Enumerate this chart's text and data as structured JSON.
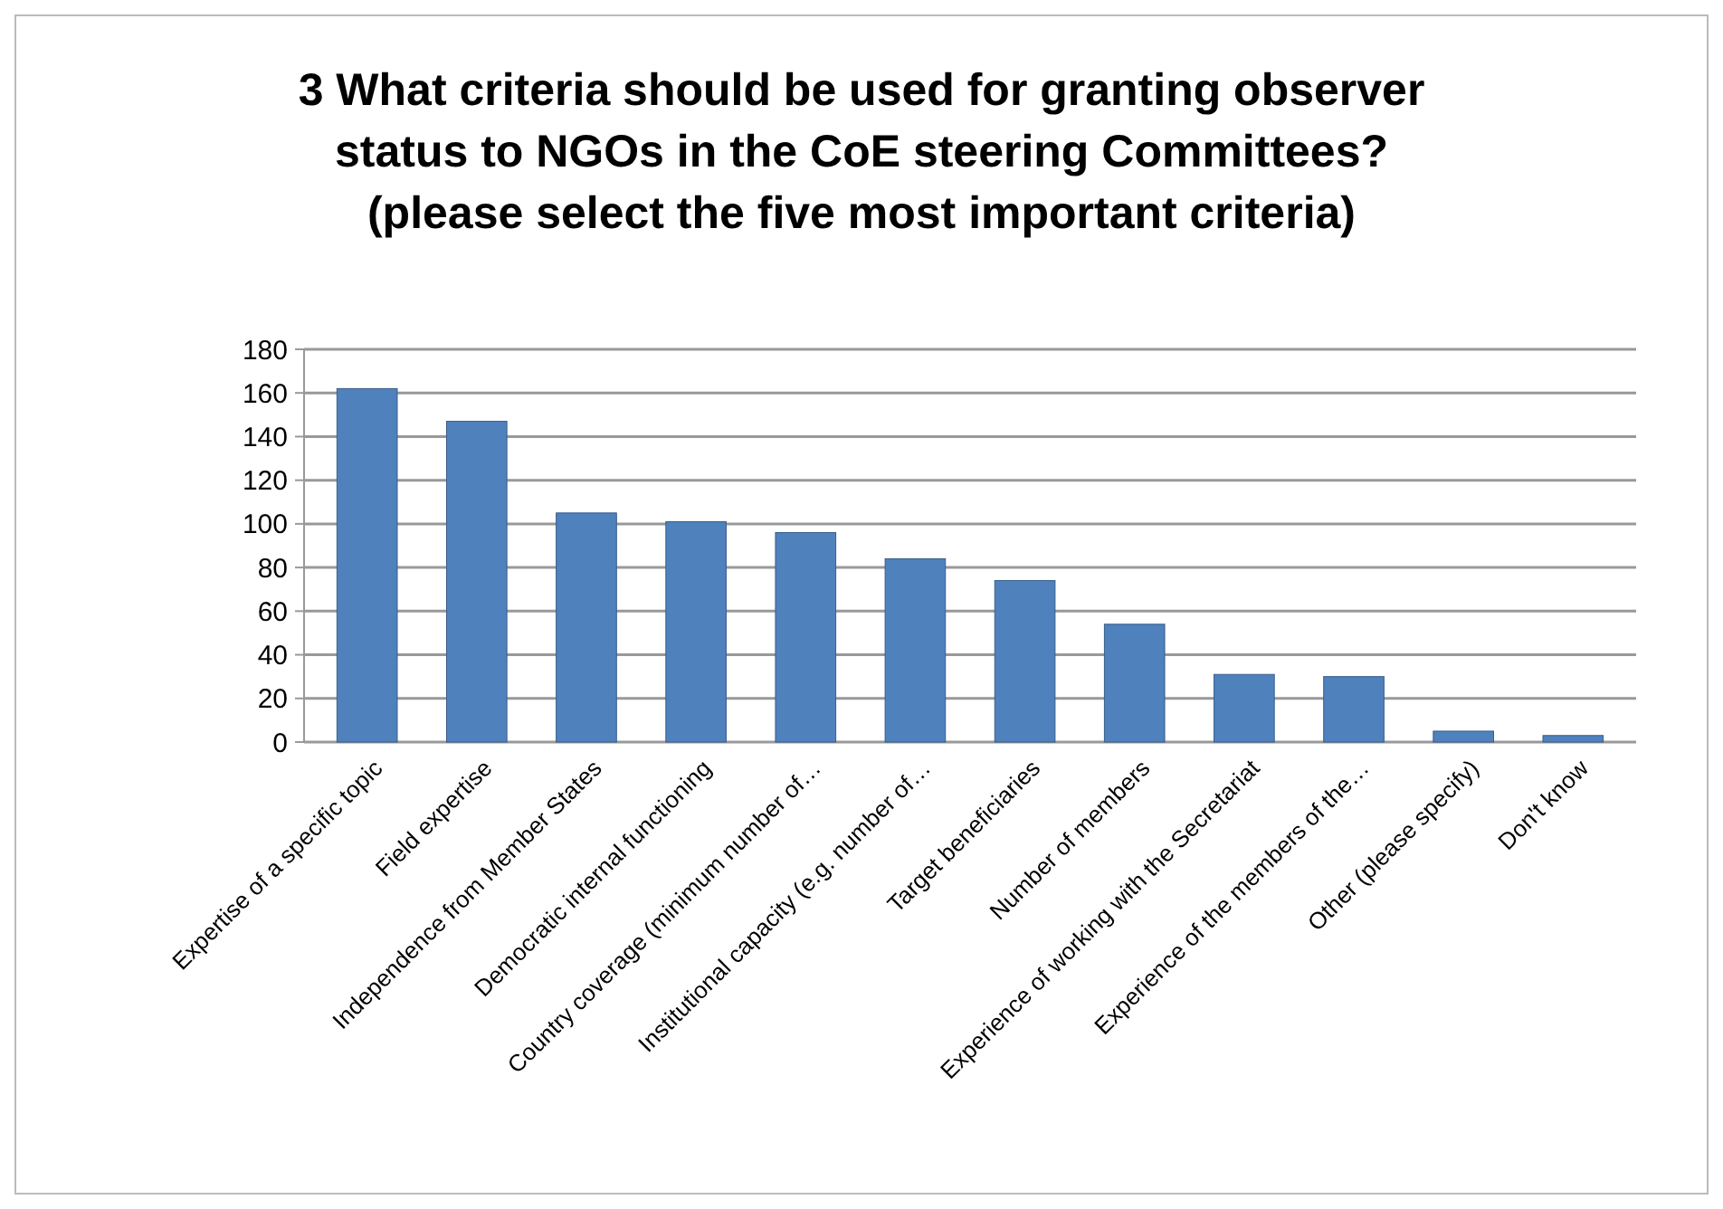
{
  "chart_data": {
    "type": "bar",
    "title": "3 What criteria should be used for granting observer status to NGOs in the CoE steering Committees? (please select the five most important criteria)",
    "categories": [
      "Expertise of a specific topic",
      "Field expertise",
      "Independence from Member States",
      "Democratic internal functioning",
      "Country coverage (minimum number of…",
      "Institutional capacity (e.g. number of…",
      "Target beneficiaries",
      "Number of members",
      "Experience of working with the Secretariat",
      "Experience of the members of the…",
      "Other (please specify)",
      "Don't know"
    ],
    "values": [
      162,
      147,
      105,
      101,
      96,
      84,
      74,
      54,
      31,
      30,
      5,
      3
    ],
    "color": "#4f81bd",
    "ylim": [
      0,
      180
    ],
    "yticks": [
      0,
      20,
      40,
      60,
      80,
      100,
      120,
      140,
      160,
      180
    ],
    "grid": "y"
  }
}
